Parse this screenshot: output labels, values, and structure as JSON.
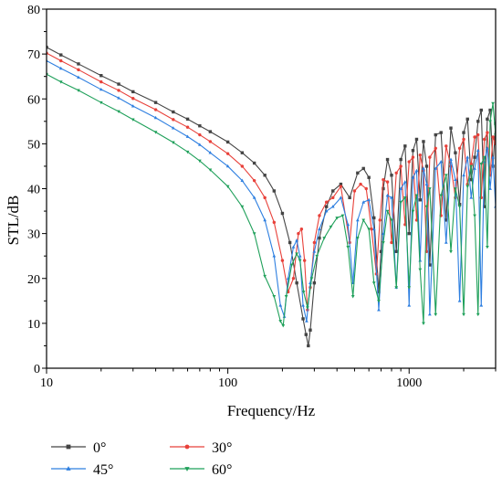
{
  "chart_data": {
    "type": "line",
    "title": "",
    "xlabel": "Frequency/Hz",
    "ylabel": "STL/dB",
    "x_scale": "log",
    "xlim": [
      10,
      3000
    ],
    "ylim": [
      0,
      80
    ],
    "x_ticks": [
      10,
      100,
      1000
    ],
    "x_tick_labels": [
      "10",
      "100",
      "1000"
    ],
    "y_ticks": [
      0,
      10,
      20,
      30,
      40,
      50,
      60,
      70,
      80
    ],
    "y_tick_labels": [
      "0",
      "10",
      "20",
      "30",
      "40",
      "50",
      "60",
      "70",
      "80"
    ],
    "grid": false,
    "legend_position": "bottom",
    "series": [
      {
        "name": "0°",
        "color": "#444444",
        "marker": "square",
        "x": [
          10,
          12,
          15,
          20,
          25,
          30,
          40,
          50,
          60,
          70,
          80,
          100,
          120,
          140,
          160,
          180,
          200,
          220,
          240,
          260,
          270,
          278,
          285,
          300,
          320,
          350,
          380,
          420,
          470,
          520,
          560,
          600,
          640,
          680,
          700,
          720,
          760,
          800,
          850,
          900,
          950,
          1000,
          1050,
          1100,
          1150,
          1200,
          1250,
          1300,
          1400,
          1500,
          1600,
          1700,
          1800,
          1900,
          2000,
          2100,
          2200,
          2300,
          2400,
          2500,
          2600,
          2700,
          2800,
          2900,
          3000
        ],
        "y": [
          71.5,
          69.8,
          67.8,
          65.2,
          63.3,
          61.6,
          59.2,
          57.1,
          55.5,
          54.0,
          52.7,
          50.4,
          48.0,
          45.7,
          43.0,
          39.5,
          34.5,
          28.0,
          19.0,
          11.0,
          7.5,
          5.0,
          8.5,
          19.0,
          29.0,
          36.0,
          39.5,
          41.0,
          38.0,
          43.5,
          44.5,
          42.5,
          33.5,
          17.0,
          26.0,
          40.0,
          46.5,
          43.0,
          26.0,
          46.5,
          49.5,
          30.0,
          48.5,
          51.0,
          37.5,
          50.5,
          45.0,
          23.0,
          52.0,
          52.5,
          33.0,
          53.5,
          48.0,
          36.5,
          52.5,
          55.5,
          42.0,
          47.0,
          55.0,
          57.5,
          36.0,
          55.5,
          57.5,
          45.0,
          54.5
        ]
      },
      {
        "name": "30°",
        "color": "#e8413a",
        "marker": "circle",
        "x": [
          10,
          12,
          15,
          20,
          25,
          30,
          40,
          50,
          60,
          70,
          80,
          100,
          120,
          140,
          160,
          180,
          200,
          215,
          230,
          245,
          255,
          265,
          275,
          285,
          300,
          320,
          350,
          380,
          420,
          470,
          500,
          540,
          580,
          620,
          660,
          690,
          720,
          760,
          800,
          850,
          900,
          950,
          1000,
          1050,
          1100,
          1150,
          1200,
          1250,
          1300,
          1400,
          1500,
          1600,
          1700,
          1800,
          1900,
          2000,
          2100,
          2200,
          2300,
          2400,
          2500,
          2600,
          2700,
          2800,
          2900,
          3000
        ],
        "y": [
          70.2,
          68.5,
          66.5,
          63.8,
          61.9,
          60.1,
          57.6,
          55.4,
          53.7,
          52.0,
          50.5,
          47.8,
          45.0,
          41.8,
          38.0,
          32.5,
          24.0,
          17.0,
          20.0,
          30.0,
          31.0,
          24.0,
          13.0,
          18.0,
          28.0,
          34.0,
          37.0,
          38.0,
          40.5,
          28.0,
          39.5,
          41.0,
          40.0,
          31.0,
          21.0,
          33.0,
          42.0,
          41.5,
          28.0,
          43.5,
          45.0,
          32.0,
          46.0,
          47.0,
          33.0,
          47.5,
          44.0,
          26.0,
          47.0,
          49.0,
          34.0,
          49.5,
          45.0,
          38.0,
          49.0,
          51.0,
          41.0,
          45.5,
          51.5,
          52.0,
          38.0,
          51.0,
          52.5,
          43.0,
          51.5,
          50.0
        ]
      },
      {
        "name": "45°",
        "color": "#2e7fe0",
        "marker": "triangle-up",
        "x": [
          10,
          12,
          15,
          20,
          25,
          30,
          40,
          50,
          60,
          70,
          80,
          100,
          120,
          140,
          160,
          180,
          195,
          205,
          215,
          230,
          240,
          250,
          260,
          272,
          285,
          300,
          320,
          350,
          380,
          420,
          460,
          490,
          520,
          560,
          600,
          640,
          680,
          720,
          760,
          800,
          850,
          900,
          950,
          1000,
          1050,
          1100,
          1150,
          1200,
          1250,
          1300,
          1400,
          1500,
          1600,
          1700,
          1800,
          1900,
          2000,
          2100,
          2200,
          2300,
          2400,
          2500,
          2600,
          2700,
          2800,
          2900,
          3000
        ],
        "y": [
          68.5,
          66.8,
          64.8,
          62.1,
          60.2,
          58.4,
          55.8,
          53.5,
          51.6,
          49.8,
          48.0,
          45.0,
          41.8,
          38.0,
          33.0,
          25.0,
          14.0,
          11.5,
          20.0,
          27.0,
          28.5,
          25.0,
          14.0,
          10.5,
          19.0,
          26.0,
          31.0,
          35.0,
          36.0,
          38.0,
          32.0,
          19.0,
          33.0,
          37.0,
          37.5,
          31.0,
          13.0,
          30.0,
          38.5,
          38.0,
          18.0,
          40.0,
          41.5,
          14.0,
          42.5,
          44.0,
          24.0,
          44.5,
          41.0,
          12.0,
          44.5,
          46.0,
          28.0,
          46.5,
          42.0,
          15.0,
          43.0,
          47.0,
          38.0,
          44.5,
          48.5,
          14.0,
          46.0,
          49.0,
          40.0,
          47.0,
          36.0
        ]
      },
      {
        "name": "60°",
        "color": "#1fa05a",
        "marker": "triangle-down",
        "x": [
          10,
          12,
          15,
          20,
          25,
          30,
          40,
          50,
          60,
          70,
          80,
          100,
          120,
          140,
          160,
          180,
          195,
          202,
          210,
          225,
          240,
          250,
          262,
          275,
          290,
          310,
          340,
          370,
          400,
          430,
          460,
          490,
          520,
          560,
          600,
          640,
          680,
          720,
          760,
          800,
          850,
          900,
          950,
          1000,
          1050,
          1100,
          1150,
          1200,
          1250,
          1300,
          1400,
          1500,
          1600,
          1700,
          1800,
          1900,
          2000,
          2100,
          2200,
          2300,
          2400,
          2500,
          2600,
          2700,
          2800,
          2900,
          3000
        ],
        "y": [
          65.5,
          63.8,
          61.9,
          59.2,
          57.2,
          55.4,
          52.6,
          50.3,
          48.2,
          46.2,
          44.2,
          40.5,
          36.0,
          30.0,
          20.5,
          16.0,
          10.5,
          9.5,
          16.0,
          23.0,
          25.5,
          24.0,
          17.0,
          13.5,
          20.0,
          25.0,
          29.0,
          31.5,
          33.5,
          34.0,
          27.0,
          16.0,
          29.0,
          33.0,
          31.0,
          19.0,
          15.0,
          28.0,
          35.0,
          33.0,
          18.0,
          37.0,
          38.0,
          18.0,
          35.0,
          38.5,
          22.0,
          10.0,
          36.0,
          40.0,
          12.0,
          38.5,
          43.0,
          26.0,
          40.0,
          36.0,
          12.0,
          40.5,
          45.0,
          34.0,
          12.0,
          45.5,
          47.0,
          27.0,
          55.0,
          59.0,
          52.0
        ]
      }
    ]
  }
}
